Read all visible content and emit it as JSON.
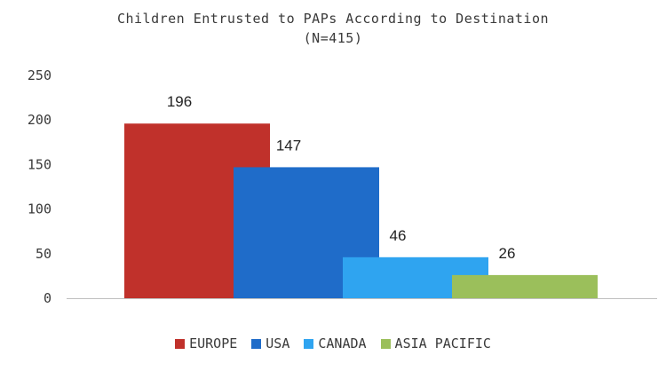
{
  "chart_data": {
    "type": "bar",
    "title": "Children Entrusted to PAPs According to Destination",
    "subtitle": "(N=415)",
    "xlabel": "",
    "ylabel": "",
    "ylim": [
      0,
      250
    ],
    "yticks": [
      "0",
      "50",
      "100",
      "150",
      "200",
      "250"
    ],
    "categories": [
      "EUROPE",
      "USA",
      "CANADA",
      "ASIA PACIFIC"
    ],
    "values": [
      196,
      147,
      46,
      26
    ],
    "colors": [
      "#c0312b",
      "#1f6cc9",
      "#2fa4f0",
      "#9bbf5b"
    ],
    "grid": false,
    "legend": "bottom"
  }
}
